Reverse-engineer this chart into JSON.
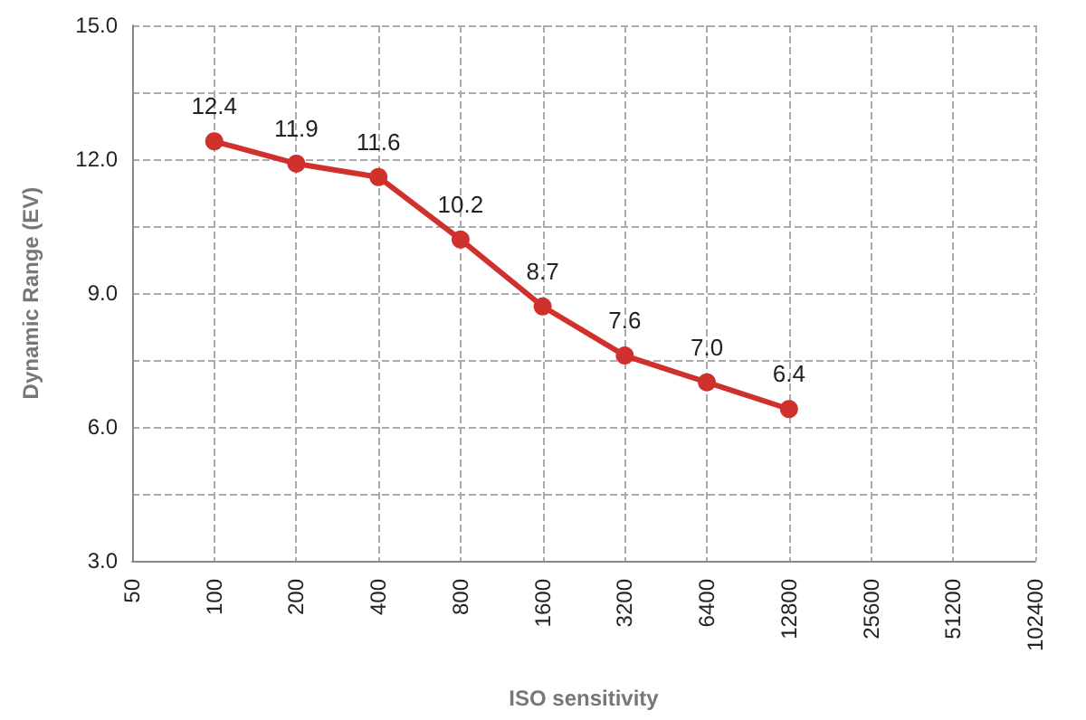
{
  "chart_data": {
    "type": "line",
    "xlabel": "ISO sensitivity",
    "ylabel": "Dynamic Range (EV)",
    "categories": [
      "50",
      "100",
      "200",
      "400",
      "800",
      "1600",
      "3200",
      "6400",
      "12800",
      "25600",
      "51200",
      "102400"
    ],
    "series": [
      {
        "color": "#d0312d",
        "values": [
          null,
          12.4,
          11.9,
          11.6,
          10.2,
          8.7,
          7.6,
          7.0,
          6.4,
          null,
          null,
          null
        ]
      }
    ],
    "ylim": [
      3,
      15
    ],
    "yticks": [
      {
        "value": 3,
        "label": "3.0"
      },
      {
        "value": 4.5,
        "label": null
      },
      {
        "value": 6,
        "label": "6.0"
      },
      {
        "value": 7.5,
        "label": null
      },
      {
        "value": 9,
        "label": "9.0"
      },
      {
        "value": 10.5,
        "label": null
      },
      {
        "value": 12,
        "label": "12.0"
      },
      {
        "value": 13.5,
        "label": null
      },
      {
        "value": 15,
        "label": "15.0"
      }
    ],
    "value_labels": [
      null,
      "12.4",
      "11.9",
      "11.6",
      "10.2",
      "8.7",
      "7.6",
      "7.0",
      "6.4",
      null,
      null,
      null
    ],
    "grid": true,
    "marker": "circle",
    "line_style": "solid"
  }
}
